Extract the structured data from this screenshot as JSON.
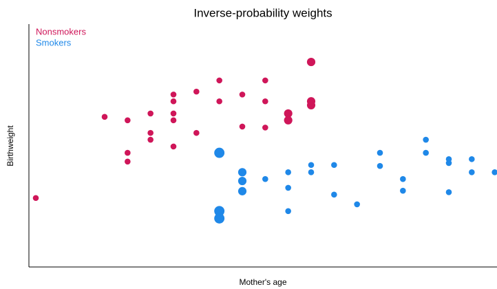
{
  "chart_data": {
    "type": "scatter",
    "title": "Inverse-probability weights",
    "xlabel": "Mother's age",
    "ylabel": "Birthweight",
    "xlim": [
      13.7,
      34.1
    ],
    "ylim": [
      0,
      5000
    ],
    "legend": "upper left",
    "series": [
      {
        "name": "Nonsmokers",
        "color": "#cf1659",
        "x": [
          14,
          17,
          18,
          18,
          18,
          19,
          19,
          19,
          20,
          20,
          20,
          20,
          20,
          21,
          21,
          22,
          22,
          23,
          23,
          24,
          24,
          24,
          25,
          25,
          26,
          26,
          26
        ],
        "y": [
          1420,
          3090,
          3020,
          2350,
          2170,
          3160,
          2760,
          2620,
          3550,
          3410,
          3160,
          3020,
          2480,
          3610,
          2760,
          3840,
          3410,
          3550,
          2890,
          3840,
          3410,
          2870,
          3160,
          3020,
          4220,
          3410,
          3330
        ],
        "size": [
          1,
          1,
          1,
          1,
          1,
          1,
          1,
          1,
          1,
          1,
          1,
          1,
          1,
          1,
          1,
          1,
          1,
          1,
          1,
          1,
          1,
          1,
          2,
          2,
          2,
          2,
          2
        ]
      },
      {
        "name": "Smokers",
        "color": "#1f88e8",
        "x": [
          22,
          22,
          22,
          23,
          23,
          23,
          24,
          25,
          25,
          25,
          26,
          26,
          27,
          27,
          28,
          29,
          29,
          30,
          30,
          31,
          31,
          32,
          32,
          32,
          33,
          33,
          34
        ],
        "y": [
          2350,
          1150,
          1000,
          1950,
          1770,
          1560,
          1810,
          1950,
          1630,
          1150,
          2100,
          1950,
          2100,
          1490,
          1290,
          2350,
          2080,
          1810,
          1570,
          2620,
          2350,
          2220,
          2140,
          1540,
          2220,
          1950,
          1950
        ],
        "size": [
          3,
          3,
          3,
          2,
          2,
          2,
          1,
          1,
          1,
          1,
          1,
          1,
          1,
          1,
          1,
          1,
          1,
          1,
          1,
          1,
          1,
          1,
          1,
          1,
          1,
          1,
          1
        ]
      }
    ]
  }
}
